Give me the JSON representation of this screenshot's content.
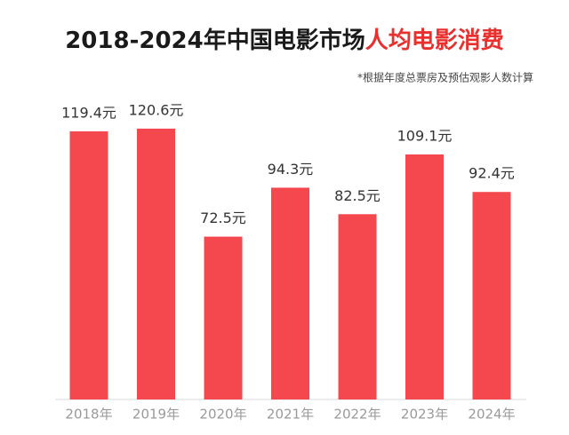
{
  "chart_data": {
    "type": "bar",
    "title": "2018-2024年中国电影市场",
    "title_highlight": "人均电影消费",
    "title_highlight_color": "#e8312f",
    "subtitle": "*根据年度总票房及预估观影人数计算",
    "categories": [
      "2018年",
      "2019年",
      "2020年",
      "2021年",
      "2022年",
      "2023年",
      "2024年"
    ],
    "values": [
      119.4,
      120.6,
      72.5,
      94.3,
      82.5,
      109.1,
      92.4
    ],
    "value_labels": [
      "119.4元",
      "120.6元",
      "72.5元",
      "94.3元",
      "82.5元",
      "109.1元",
      "92.4元"
    ],
    "color": "#f4484e"
  }
}
